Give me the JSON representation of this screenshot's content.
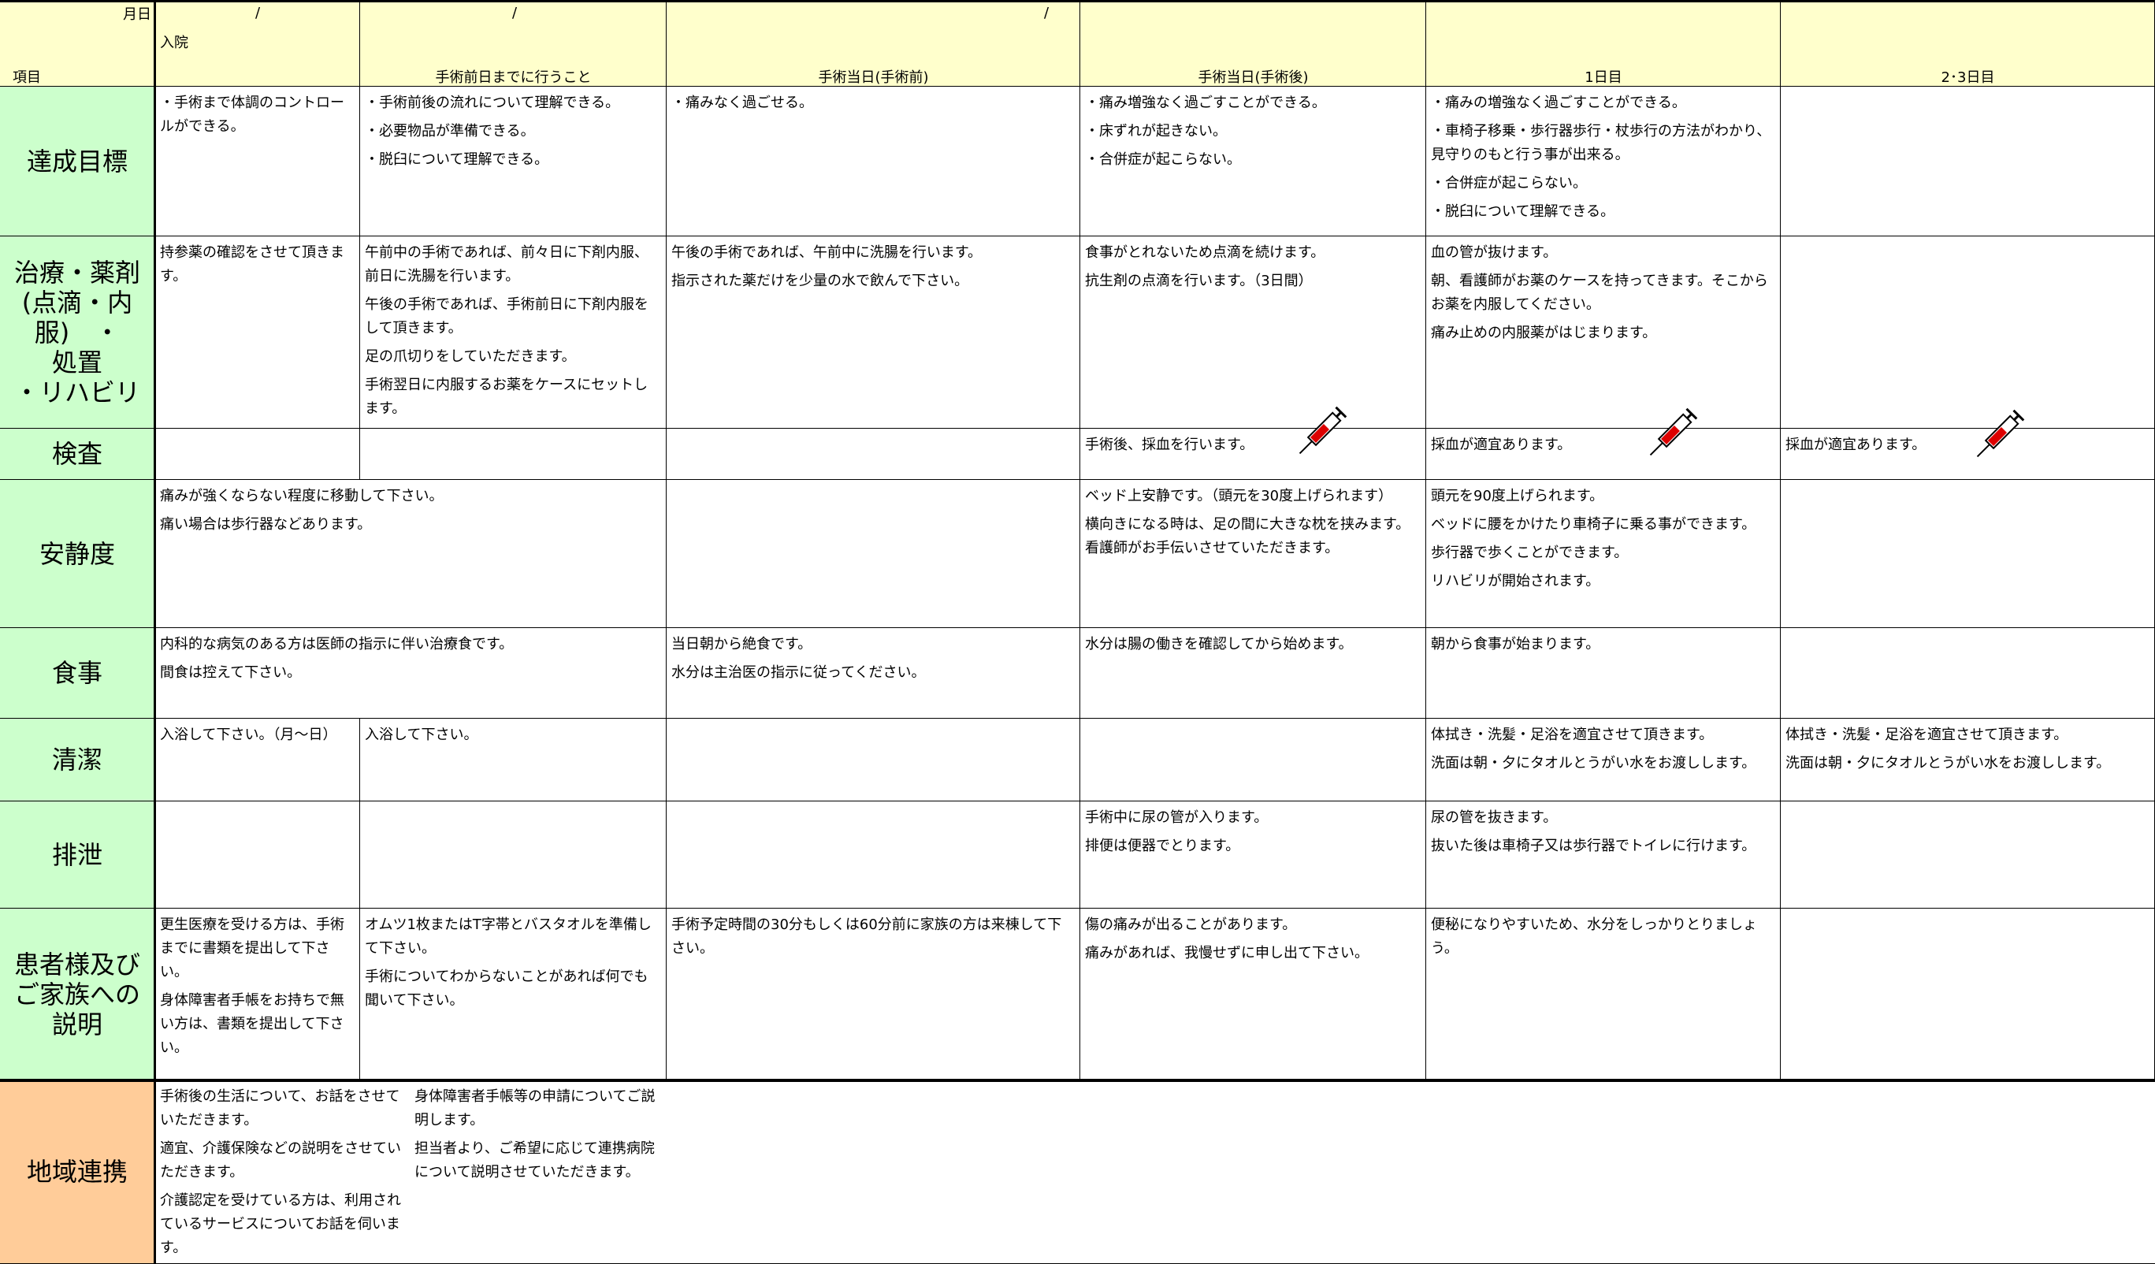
{
  "header": {
    "corner_top": "月日",
    "corner_bottom": "項目",
    "dates": [
      "/",
      "/",
      "/"
    ],
    "columns": [
      "入院",
      "手術前日までに行うこと",
      "手術当日(手術前)",
      "手術当日(手術後)",
      "1日目",
      "2･3日目"
    ]
  },
  "rows": [
    {
      "label": [
        "達成目標"
      ],
      "cells": [
        [
          "・手術まで体調のコントロールができる。"
        ],
        [
          "・手術前後の流れについて理解できる。",
          "・必要物品が準備できる。",
          "・脱臼について理解できる。"
        ],
        [
          "・痛みなく過ごせる。"
        ],
        [
          "・痛み増強なく過ごすことができる。",
          "・床ずれが起きない。",
          "・合併症が起こらない。"
        ],
        [
          "・痛みの増強なく過ごすことができる。",
          "・車椅子移乗・歩行器歩行・杖歩行の方法がわかり、見守りのもと行う事が出来る。",
          "・合併症が起こらない。",
          "・脱臼について理解できる。"
        ],
        []
      ]
    },
    {
      "label": [
        "治療・薬剤",
        "(点滴・内服)　・",
        "処置",
        "・リハビリ"
      ],
      "cells": [
        [
          "持参薬の確認をさせて頂きます。"
        ],
        [
          "午前中の手術であれば、前々日に下剤内服、前日に洗腸を行います。",
          "午後の手術であれば、手術前日に下剤内服をして頂きます。",
          "足の爪切りをしていただきます。",
          "手術翌日に内服するお薬をケースにセットします。"
        ],
        [
          "午後の手術であれば、午前中に洗腸を行います。",
          "指示された薬だけを少量の水で飲んで下さい。"
        ],
        [
          "食事がとれないため点滴を続けます。",
          "抗生剤の点滴を行います。（3日間）"
        ],
        [
          "血の管が抜けます。",
          "朝、看護師がお薬のケースを持ってきます。そこからお薬を内服してください。",
          "痛み止めの内服薬がはじまります。"
        ],
        []
      ]
    },
    {
      "label": [
        "検査"
      ],
      "cells": [
        [],
        [],
        [],
        [
          "手術後、採血を行います。"
        ],
        [
          "採血が適宜あります。"
        ],
        [
          "採血が適宜あります。"
        ]
      ]
    },
    {
      "label": [
        "安静度"
      ],
      "cells": [
        [
          "痛みが強くならない程度に移動して下さい。",
          "痛い場合は歩行器などあります。"
        ],
        [],
        [
          "ベッド上安静です。（頭元を30度上げられます）",
          "横向きになる時は、足の間に大きな枕を挟みます。看護師がお手伝いさせていただきます。"
        ],
        [
          "頭元を90度上げられます。",
          "ベッドに腰をかけたり車椅子に乗る事ができます。",
          "歩行器で歩くことができます。",
          "リハビリが開始されます。"
        ],
        []
      ]
    },
    {
      "label": [
        "食事"
      ],
      "cells": [
        [
          "内科的な病気のある方は医師の指示に伴い治療食です。",
          "間食は控えて下さい。"
        ],
        [
          "当日朝から絶食です。",
          "水分は主治医の指示に従ってください。"
        ],
        [
          "水分は腸の働きを確認してから始めます。"
        ],
        [
          "朝から食事が始まります。"
        ],
        []
      ]
    },
    {
      "label": [
        "清潔"
      ],
      "cells": [
        [
          "入浴して下さい。（月～日）"
        ],
        [
          "入浴して下さい。"
        ],
        [],
        [],
        [
          "体拭き・洗髪・足浴を適宜させて頂きます。",
          "洗面は朝・夕にタオルとうがい水をお渡しします。"
        ],
        [
          "体拭き・洗髪・足浴を適宜させて頂きます。",
          "洗面は朝・夕にタオルとうがい水をお渡しします。"
        ]
      ]
    },
    {
      "label": [
        "排泄"
      ],
      "cells": [
        [],
        [],
        [],
        [
          "手術中に尿の管が入ります。",
          "排便は便器でとります。"
        ],
        [
          "尿の管を抜きます。",
          "抜いた後は車椅子又は歩行器でトイレに行けます。"
        ],
        []
      ]
    },
    {
      "label": [
        "患者様及び",
        "ご家族への",
        "説明"
      ],
      "cells": [
        [
          "更生医療を受ける方は、手術までに書類を提出して下さい。",
          "身体障害者手帳をお持ちで無い方は、書類を提出して下さい。"
        ],
        [
          "オムツ1枚またはT字帯とバスタオルを準備して下さい。",
          "手術についてわからないことがあれば何でも聞いて下さい。"
        ],
        [
          "手術予定時間の30分もしくは60分前に家族の方は来棟して下さい。"
        ],
        [
          "傷の痛みが出ることがあります。",
          "痛みがあれば、我慢せずに申し出て下さい。"
        ],
        [
          "便秘になりやすいため、水分をしっかりとりましょう。"
        ],
        []
      ]
    },
    {
      "label": [
        "地域連携"
      ],
      "cells": [
        [
          "手術後の生活について、お話をさせていただきます。",
          "適宜、介護保険などの説明をさせていただきます。",
          "介護認定を受けている方は、利用されているサービスについてお話を伺います。"
        ],
        [
          "身体障害者手帳等の申請についてご説明します。",
          "担当者より、ご希望に応じて連携病院について説明させていただきます。"
        ],
        []
      ]
    }
  ]
}
